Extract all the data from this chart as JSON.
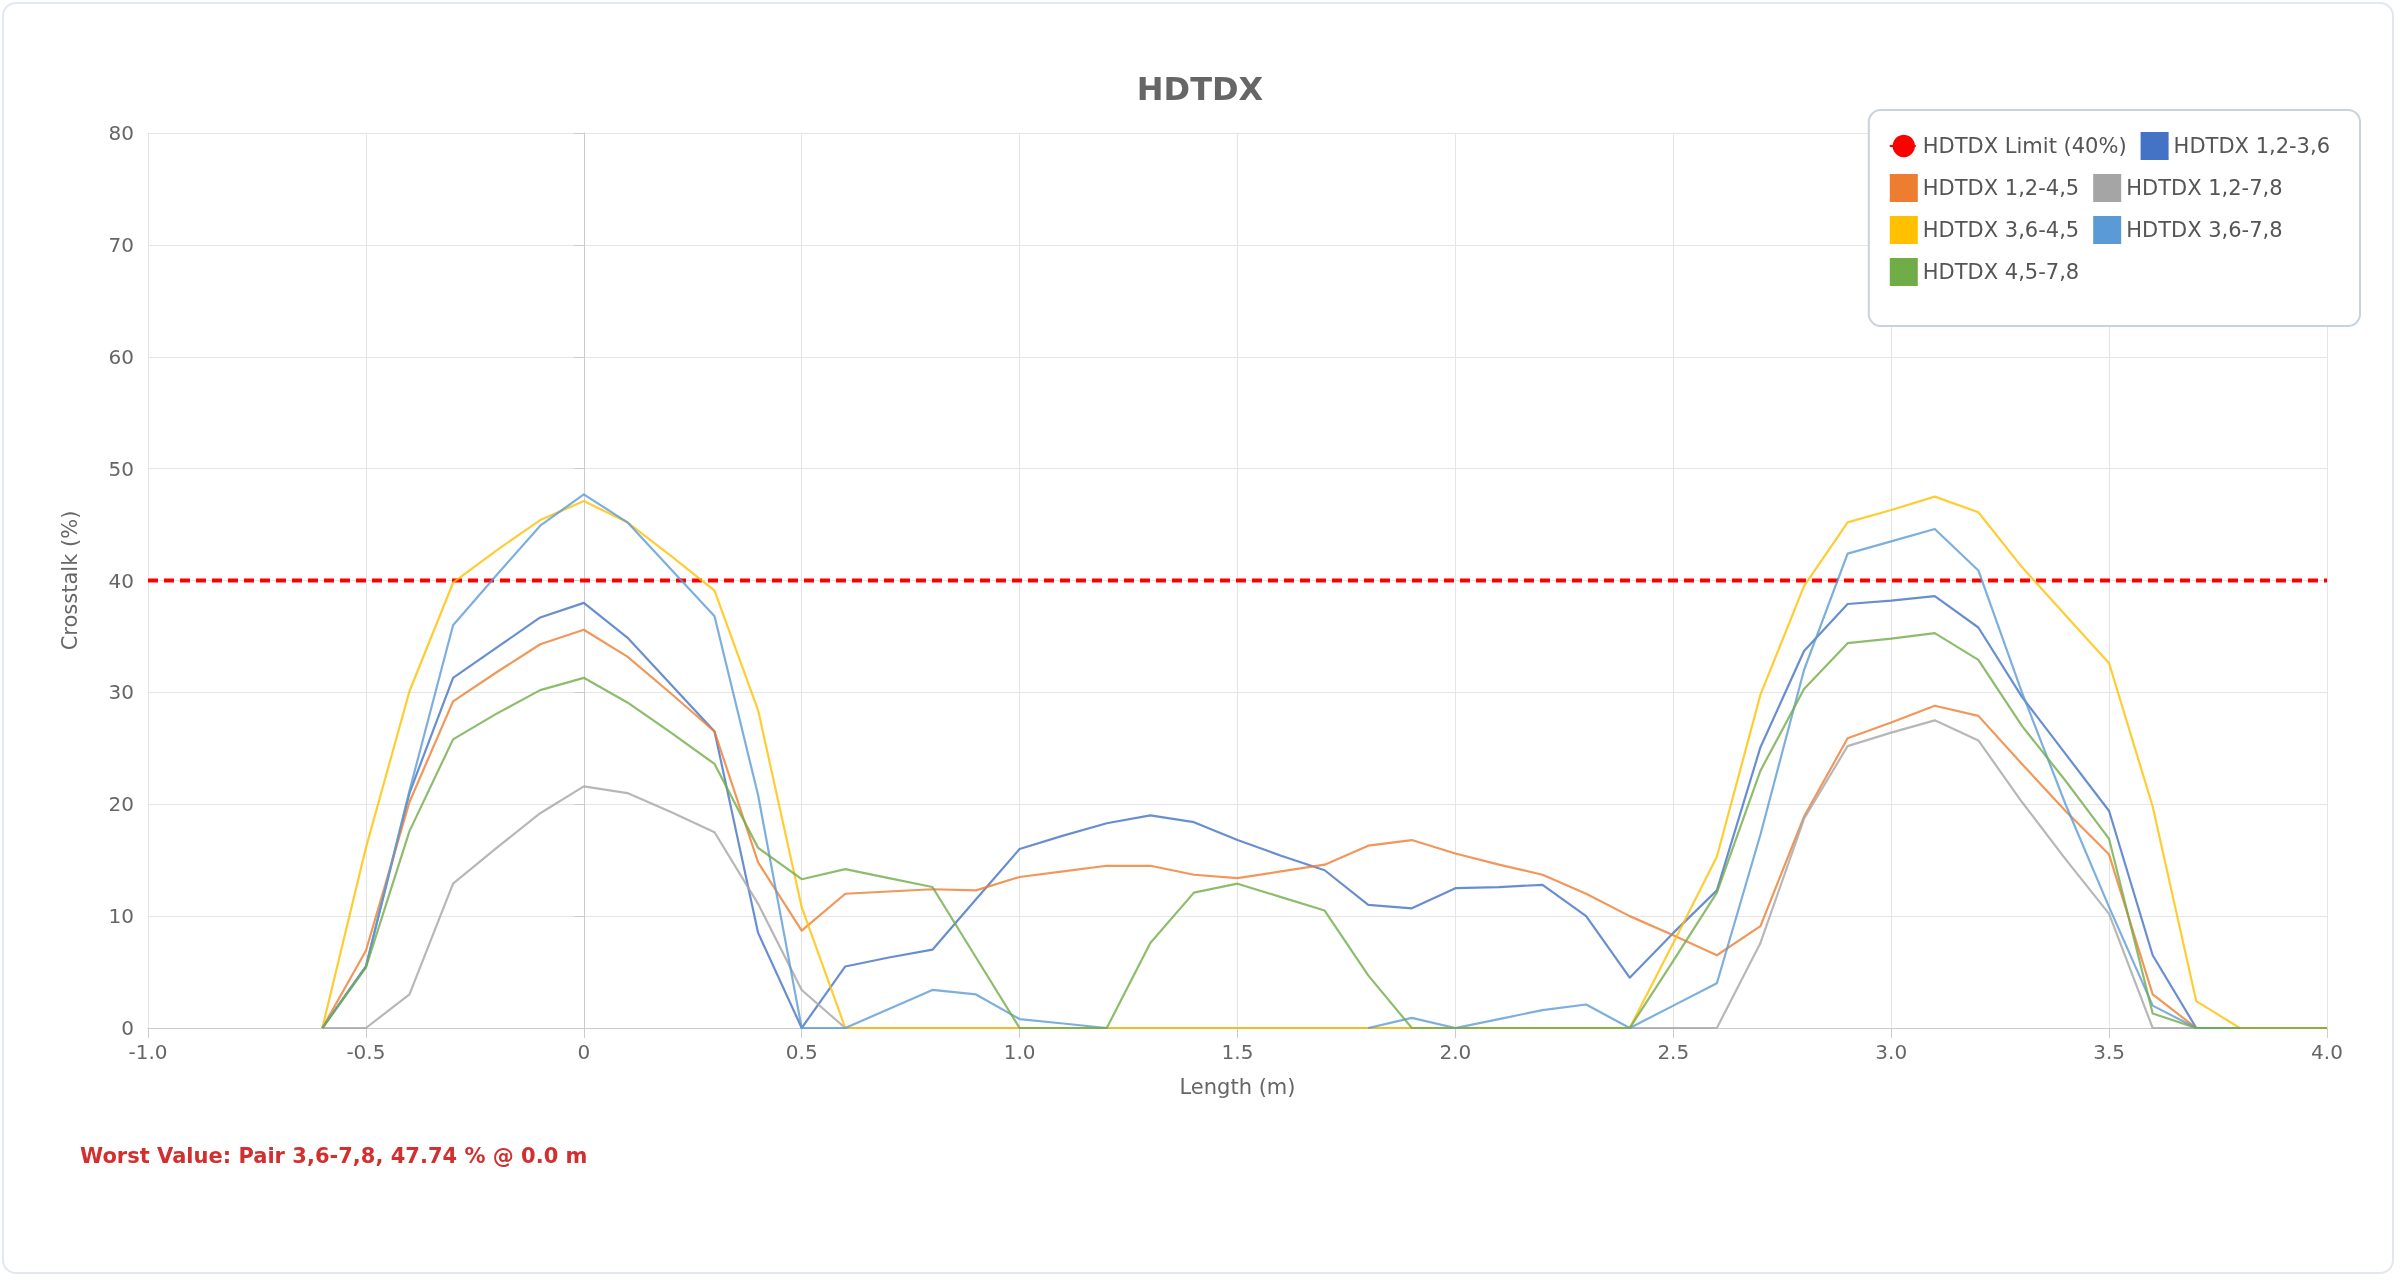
{
  "chart_data": {
    "type": "line",
    "title": "HDTDX",
    "xlabel": "Length (m)",
    "ylabel": "Crosstalk (%)",
    "x": [
      -0.6,
      -0.5,
      -0.4,
      -0.3,
      -0.2,
      -0.1,
      0,
      0.1,
      0.2,
      0.3,
      0.4,
      0.5,
      0.6,
      0.7,
      0.8,
      0.9,
      1.0,
      1.1,
      1.2,
      1.3,
      1.4,
      1.5,
      1.6,
      1.7,
      1.8,
      1.9,
      2.0,
      2.1,
      2.2,
      2.3,
      2.4,
      2.5,
      2.6,
      2.7,
      2.8,
      2.9,
      3.0,
      3.1,
      3.2,
      3.3,
      3.4,
      3.5,
      3.6,
      3.7,
      3.8,
      3.9,
      4.0
    ],
    "series": [
      {
        "name": "HDTDX 1,2-3,6",
        "color": "#4472c4",
        "values": [
          0,
          5.5,
          21,
          31.3,
          34,
          36.7,
          38,
          34.9,
          30.7,
          26.5,
          8.5,
          0,
          5.5,
          6.3,
          7,
          11.5,
          16,
          17.2,
          18.3,
          19,
          18.4,
          16.8,
          15.4,
          14.1,
          11,
          10.7,
          12.5,
          12.6,
          12.8,
          10,
          4.5,
          8.5,
          12.3,
          25.1,
          33.7,
          37.9,
          38.2,
          38.6,
          35.8,
          29.6,
          24.5,
          19.4,
          6.5,
          0,
          0,
          null,
          null
        ]
      },
      {
        "name": "HDTDX 1,2-4,5",
        "color": "#ed7d31",
        "values": [
          0,
          6.9,
          20.2,
          29.2,
          31.8,
          34.3,
          35.6,
          33.2,
          29.9,
          26.5,
          14.8,
          8.7,
          12,
          12.2,
          12.4,
          12.3,
          13.5,
          14,
          14.5,
          14.5,
          13.7,
          13.4,
          14,
          14.6,
          16.3,
          16.8,
          15.6,
          14.6,
          13.7,
          12,
          10,
          8.3,
          6.5,
          9.1,
          18.9,
          25.9,
          27.3,
          28.8,
          27.9,
          23.6,
          19.4,
          15.5,
          3,
          0,
          0,
          0,
          0
        ]
      },
      {
        "name": "HDTDX 1,2-7,8",
        "color": "#a5a5a5",
        "values": [
          0,
          0,
          3,
          12.9,
          16.1,
          19.2,
          21.6,
          21,
          19.3,
          17.5,
          11.1,
          3.4,
          0,
          0,
          0,
          0,
          0,
          0,
          0,
          0,
          0,
          0,
          0,
          0,
          0,
          0,
          0,
          0,
          0,
          0,
          0,
          0,
          0,
          7.6,
          18.7,
          25.2,
          26.4,
          27.5,
          25.7,
          20.2,
          15.1,
          10.2,
          0,
          0,
          0,
          0,
          0
        ]
      },
      {
        "name": "HDTDX 3,6-4,5",
        "color": "#ffc000",
        "values": [
          0,
          16.1,
          30.1,
          39.8,
          42.7,
          45.4,
          47.1,
          45.2,
          42.2,
          39.1,
          28.4,
          10.8,
          0,
          0,
          0,
          0,
          0,
          0,
          0,
          0,
          0,
          0,
          0,
          0,
          0,
          0,
          0,
          0,
          0,
          0,
          0,
          7.6,
          15.3,
          29.8,
          39.5,
          45.2,
          46.3,
          47.5,
          46.1,
          41.2,
          36.9,
          32.6,
          19.8,
          2.4,
          0,
          0,
          0
        ]
      },
      {
        "name": "HDTDX 3,6-7,8",
        "color": "#5b9bd5",
        "values": [
          0,
          5.5,
          21.2,
          36,
          40.5,
          44.9,
          47.7,
          45.2,
          41,
          36.8,
          20.8,
          0,
          0,
          1.7,
          3.4,
          3,
          0.8,
          0.4,
          0,
          null,
          null,
          null,
          null,
          null,
          0,
          0.9,
          0,
          0.8,
          1.6,
          2.1,
          0,
          2,
          4,
          17.3,
          32,
          42.4,
          43.5,
          44.6,
          40.9,
          30,
          20,
          10.8,
          2,
          0,
          0,
          null,
          null
        ]
      },
      {
        "name": "HDTDX 4,5-7,8",
        "color": "#70ad47",
        "values": [
          0,
          5.4,
          17.6,
          25.8,
          28.1,
          30.2,
          31.3,
          29.1,
          26.4,
          23.6,
          16.1,
          13.3,
          14.2,
          13.4,
          12.6,
          6.3,
          0,
          0,
          0,
          7.6,
          12.1,
          12.9,
          11.7,
          10.5,
          4.7,
          0,
          0,
          0,
          0,
          0,
          0,
          6,
          12.1,
          23,
          30.3,
          34.4,
          34.8,
          35.3,
          32.9,
          27,
          22.1,
          16.9,
          1.3,
          0,
          0,
          0,
          0
        ]
      }
    ],
    "ref_lines": [
      {
        "axis": "y",
        "value": 40,
        "label": "HDTDX Limit (40%)",
        "color": "#ff0000",
        "line_style": "dashed"
      }
    ],
    "xlim": [
      -1.0,
      4.0
    ],
    "xticks": [
      {
        "value": -1,
        "label": "-1.0"
      },
      {
        "value": -0.5,
        "label": "-0.5"
      },
      {
        "value": 0,
        "label": "0"
      },
      {
        "value": 0.5,
        "label": "0.5"
      },
      {
        "value": 1,
        "label": "1.0"
      },
      {
        "value": 1.5,
        "label": "1.5"
      },
      {
        "value": 2,
        "label": "2.0"
      },
      {
        "value": 2.5,
        "label": "2.5"
      },
      {
        "value": 3,
        "label": "3.0"
      },
      {
        "value": 3.5,
        "label": "3.5"
      },
      {
        "value": 4,
        "label": "4.0"
      }
    ],
    "ylim": [
      0,
      80
    ],
    "yticks": [
      0,
      10,
      20,
      30,
      40,
      50,
      60,
      70,
      80
    ],
    "grid": true,
    "legend": "top right",
    "marker": "none",
    "line_style": "solid",
    "annotations": [
      "Worst Value: Pair 3,6-7,8, 47.74 % @ 0.0 m"
    ]
  }
}
